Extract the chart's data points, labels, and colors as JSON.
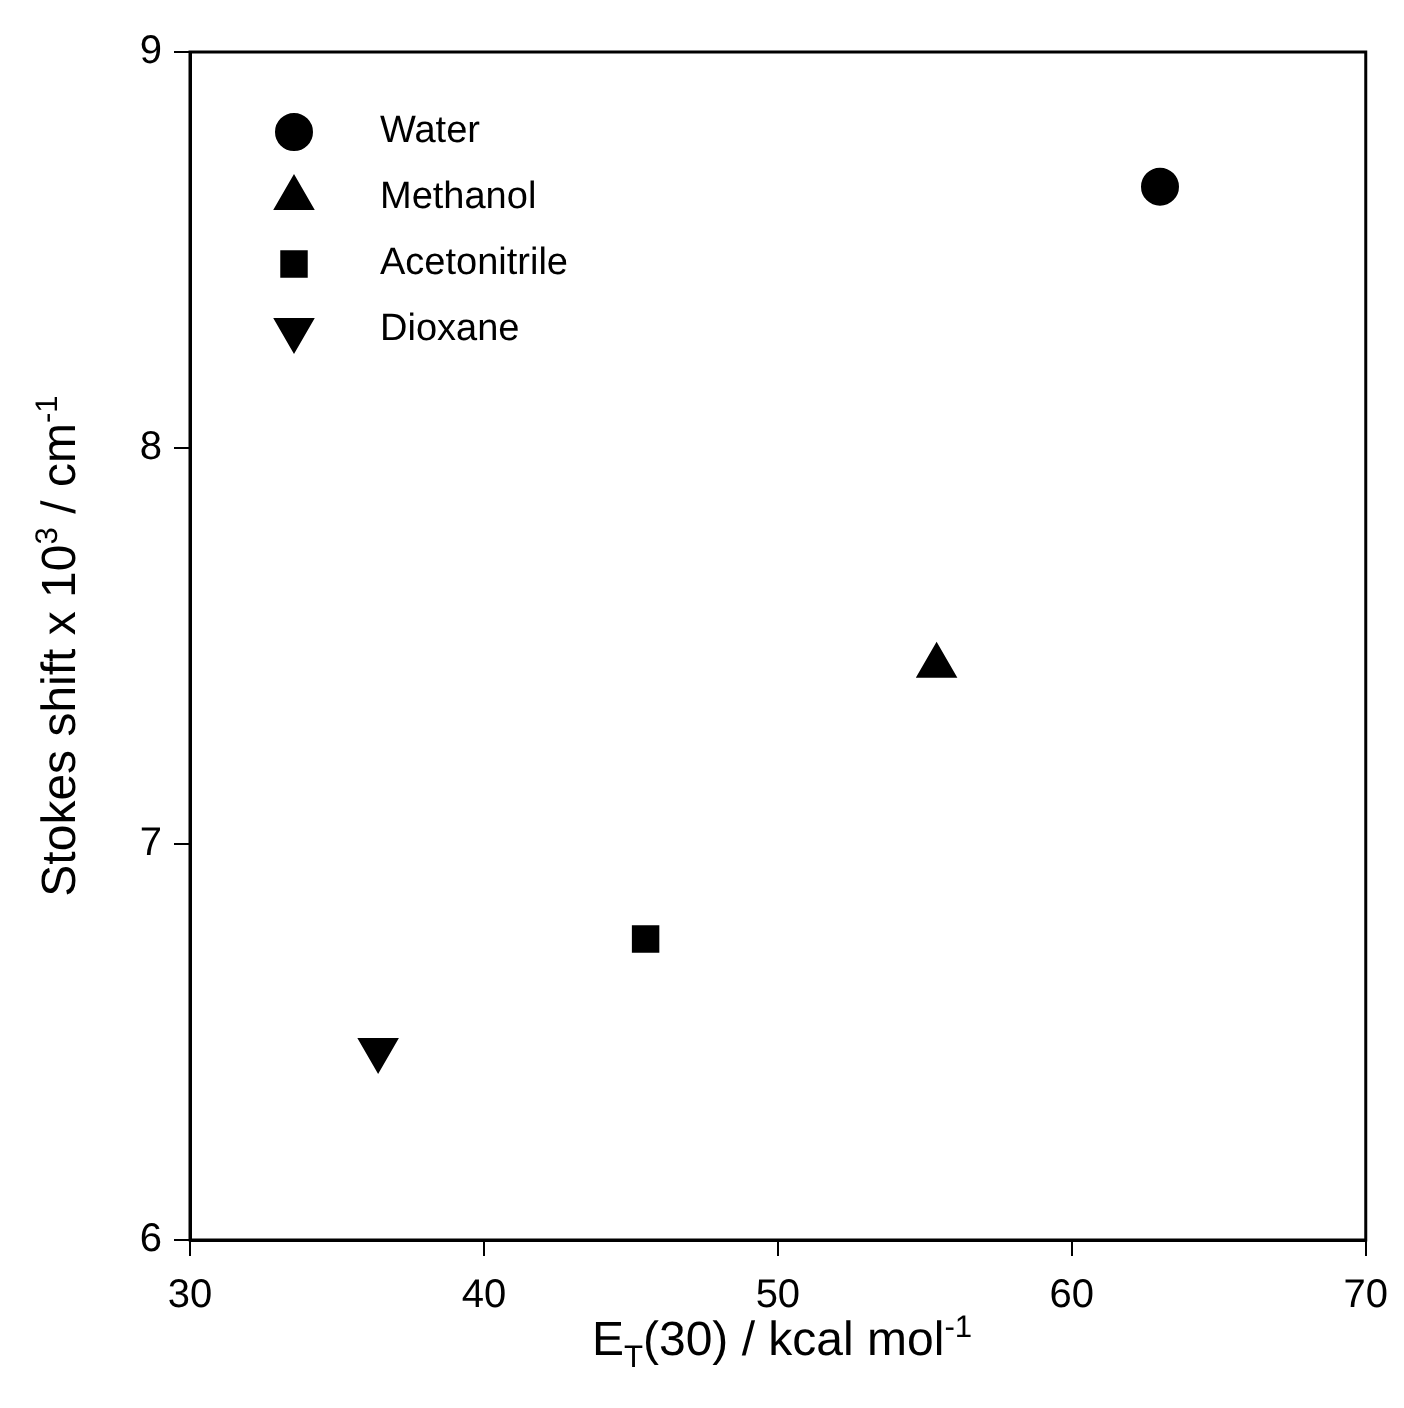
{
  "chart_data": {
    "type": "scatter",
    "xlabel": "E$_{T}$(30) / kcal mol$^{-1}$",
    "ylabel": "Stokes shift x 10$^{3}$ / cm$^{-1}$",
    "xlim": [
      30,
      70
    ],
    "xticks": [
      30,
      40,
      50,
      60,
      70
    ],
    "ylim": [
      6,
      9
    ],
    "yticks": [
      6,
      7,
      8,
      9
    ],
    "grid": false,
    "legend": "top left",
    "series": [
      {
        "name": "Water",
        "color": "#000000",
        "marker": "circle",
        "x": [
          63.0
        ],
        "values": [
          8.66
        ]
      },
      {
        "name": "Methanol",
        "color": "#000000",
        "marker": "triangle",
        "x": [
          55.4
        ],
        "values": [
          7.45
        ]
      },
      {
        "name": "Acetonitrile",
        "color": "#000000",
        "marker": "square",
        "x": [
          45.5
        ],
        "values": [
          6.76
        ]
      },
      {
        "name": "Dioxane",
        "color": "#000000",
        "marker": "triangle-down",
        "x": [
          36.4
        ],
        "values": [
          6.48
        ]
      }
    ]
  }
}
